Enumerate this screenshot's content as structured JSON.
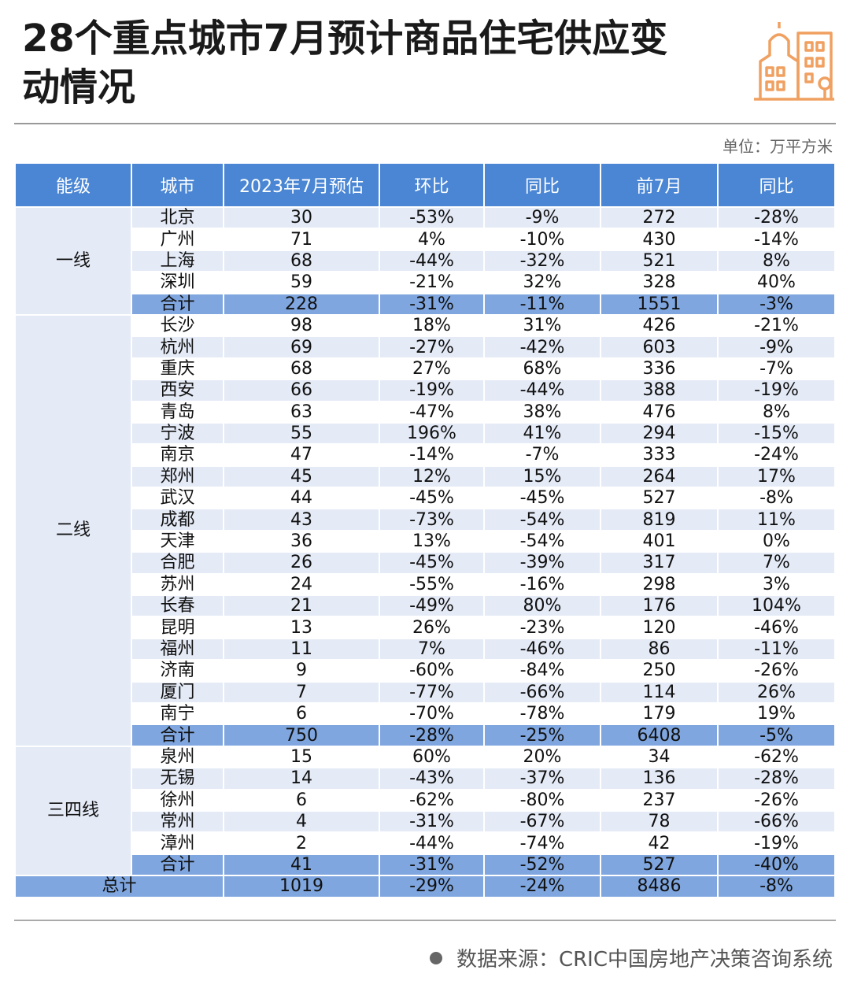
{
  "title": "28个重点城市7月预计商品住宅供应变动情况",
  "unit_label": "单位：万平方米",
  "source_label": "数据来源：CRIC中国房地产决策咨询系统",
  "colors": {
    "header": "#4a86d4",
    "subtotal": "#7fa6df",
    "stripe": "#e4eaf6",
    "logo": "#f0a060"
  },
  "table": {
    "columns": [
      "能级",
      "城市",
      "2023年7月预估",
      "环比",
      "同比",
      "前7月",
      "同比"
    ],
    "groups": [
      {
        "tier": "一线",
        "rows": [
          [
            "北京",
            "30",
            "-53%",
            "-9%",
            "272",
            "-28%"
          ],
          [
            "广州",
            "71",
            "4%",
            "-10%",
            "430",
            "-14%"
          ],
          [
            "上海",
            "68",
            "-44%",
            "-32%",
            "521",
            "8%"
          ],
          [
            "深圳",
            "59",
            "-21%",
            "32%",
            "328",
            "40%"
          ]
        ],
        "subtotal": [
          "合计",
          "228",
          "-31%",
          "-11%",
          "1551",
          "-3%"
        ]
      },
      {
        "tier": "二线",
        "rows": [
          [
            "长沙",
            "98",
            "18%",
            "31%",
            "426",
            "-21%"
          ],
          [
            "杭州",
            "69",
            "-27%",
            "-42%",
            "603",
            "-9%"
          ],
          [
            "重庆",
            "68",
            "27%",
            "68%",
            "336",
            "-7%"
          ],
          [
            "西安",
            "66",
            "-19%",
            "-44%",
            "388",
            "-19%"
          ],
          [
            "青岛",
            "63",
            "-47%",
            "38%",
            "476",
            "8%"
          ],
          [
            "宁波",
            "55",
            "196%",
            "41%",
            "294",
            "-15%"
          ],
          [
            "南京",
            "47",
            "-14%",
            "-7%",
            "333",
            "-24%"
          ],
          [
            "郑州",
            "45",
            "12%",
            "15%",
            "264",
            "17%"
          ],
          [
            "武汉",
            "44",
            "-45%",
            "-45%",
            "527",
            "-8%"
          ],
          [
            "成都",
            "43",
            "-73%",
            "-54%",
            "819",
            "11%"
          ],
          [
            "天津",
            "36",
            "13%",
            "-54%",
            "401",
            "0%"
          ],
          [
            "合肥",
            "26",
            "-45%",
            "-39%",
            "317",
            "7%"
          ],
          [
            "苏州",
            "24",
            "-55%",
            "-16%",
            "298",
            "3%"
          ],
          [
            "长春",
            "21",
            "-49%",
            "80%",
            "176",
            "104%"
          ],
          [
            "昆明",
            "13",
            "26%",
            "-23%",
            "120",
            "-46%"
          ],
          [
            "福州",
            "11",
            "7%",
            "-46%",
            "86",
            "-11%"
          ],
          [
            "济南",
            "9",
            "-60%",
            "-84%",
            "250",
            "-26%"
          ],
          [
            "厦门",
            "7",
            "-77%",
            "-66%",
            "114",
            "26%"
          ],
          [
            "南宁",
            "6",
            "-70%",
            "-78%",
            "179",
            "19%"
          ]
        ],
        "subtotal": [
          "合计",
          "750",
          "-28%",
          "-25%",
          "6408",
          "-5%"
        ]
      },
      {
        "tier": "三四线",
        "rows": [
          [
            "泉州",
            "15",
            "60%",
            "20%",
            "34",
            "-62%"
          ],
          [
            "无锡",
            "14",
            "-43%",
            "-37%",
            "136",
            "-28%"
          ],
          [
            "徐州",
            "6",
            "-62%",
            "-80%",
            "237",
            "-26%"
          ],
          [
            "常州",
            "4",
            "-31%",
            "-67%",
            "78",
            "-66%"
          ],
          [
            "漳州",
            "2",
            "-44%",
            "-74%",
            "42",
            "-19%"
          ]
        ],
        "subtotal": [
          "合计",
          "41",
          "-31%",
          "-52%",
          "527",
          "-40%"
        ]
      }
    ],
    "grand_total": [
      "总计",
      "1019",
      "-29%",
      "-24%",
      "8486",
      "-8%"
    ]
  }
}
